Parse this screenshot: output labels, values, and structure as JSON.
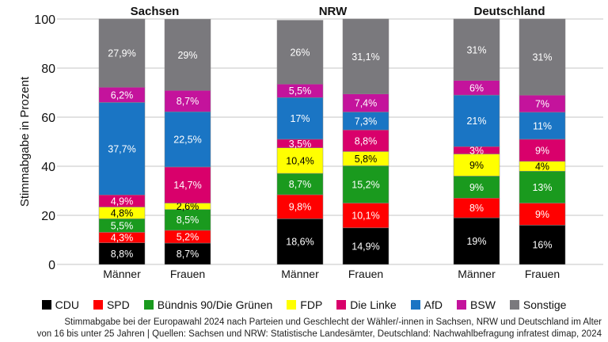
{
  "chart_data": {
    "type": "bar",
    "stacked": true,
    "ylabel": "Stimmabgabe in Prozent",
    "ylim": [
      0,
      100
    ],
    "yticks": [
      "0",
      "20",
      "40",
      "60",
      "80",
      "100"
    ],
    "grid": true,
    "legend_placement": "bottom",
    "groups": [
      {
        "title": "Sachsen",
        "bars": [
          {
            "label": "Männer",
            "values": [
              8.8,
              4.3,
              5.5,
              4.8,
              4.9,
              37.7,
              6.2,
              27.9
            ],
            "labels": [
              "8,8%",
              "4,3%",
              "5,5%",
              "4,8%",
              "4,9%",
              "37,7%",
              "6,2%",
              "27,9%"
            ]
          },
          {
            "label": "Frauen",
            "values": [
              8.7,
              5.2,
              8.5,
              2.6,
              14.7,
              22.5,
              8.7,
              29
            ],
            "labels": [
              "8,7%",
              "5,2%",
              "8,5%",
              "2,6%",
              "14,7%",
              "22,5%",
              "8,7%",
              "29%"
            ]
          }
        ]
      },
      {
        "title": "NRW",
        "bars": [
          {
            "label": "Männer",
            "values": [
              18.6,
              9.8,
              8.7,
              10.4,
              3.5,
              17,
              5.5,
              26
            ],
            "labels": [
              "18,6%",
              "9,8%",
              "8,7%",
              "10,4%",
              "3,5%",
              "17%",
              "5,5%",
              "26%"
            ]
          },
          {
            "label": "Frauen",
            "values": [
              14.9,
              10.1,
              15.2,
              5.8,
              8.8,
              7.3,
              7.4,
              31.1
            ],
            "labels": [
              "14,9%",
              "10,1%",
              "15,2%",
              "5,8%",
              "8,8%",
              "7,3%",
              "7,4%",
              "31,1%"
            ]
          }
        ]
      },
      {
        "title": "Deutschland",
        "bars": [
          {
            "label": "Männer",
            "values": [
              19,
              8,
              9,
              9,
              3,
              21,
              6,
              31
            ],
            "labels": [
              "19%",
              "8%",
              "9%",
              "9%",
              "3%",
              "21%",
              "6%",
              "31%"
            ]
          },
          {
            "label": "Frauen",
            "values": [
              16,
              9,
              13,
              4,
              9,
              11,
              7,
              31
            ],
            "labels": [
              "16%",
              "9%",
              "13%",
              "4%",
              "9%",
              "11%",
              "7%",
              "31%"
            ]
          }
        ]
      }
    ],
    "series": [
      {
        "name": "CDU",
        "color": "#000000"
      },
      {
        "name": "SPD",
        "color": "#ff0000"
      },
      {
        "name": "Bündnis 90/Die Grünen",
        "color": "#1a9a1e"
      },
      {
        "name": "FDP",
        "color": "#ffff00"
      },
      {
        "name": "Die Linke",
        "color": "#d9006b"
      },
      {
        "name": "AfD",
        "color": "#1a75c4"
      },
      {
        "name": "BSW",
        "color": "#c4139c"
      },
      {
        "name": "Sonstige",
        "color": "#7a797d"
      }
    ]
  },
  "caption": {
    "line1": "Stimmabgabe bei der Europawahl 2024 nach Parteien und Geschlecht der Wähler/-innen in Sachsen, NRW und Deutschland im Alter",
    "line2": "von 16 bis unter 25 Jahren | Quellen: Sachsen und NRW: Statistische Landesämter, Deutschland: Nachwahlbefragung infratest dimap, 2024"
  }
}
